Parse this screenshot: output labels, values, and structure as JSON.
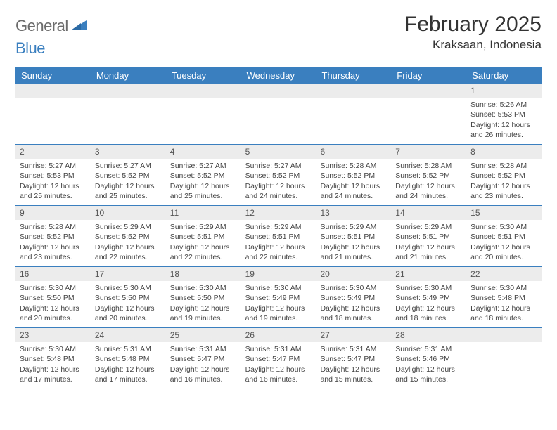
{
  "brand": {
    "text1": "General",
    "text2": "Blue",
    "icon_color": "#3a7fbf"
  },
  "header": {
    "month_title": "February 2025",
    "location": "Kraksaan, Indonesia"
  },
  "styling": {
    "header_bg": "#3a7fbf",
    "header_text": "#ffffff",
    "daynum_bg": "#ececec",
    "divider_color": "#3a7fbf",
    "body_text": "#444444"
  },
  "weekdays": [
    "Sunday",
    "Monday",
    "Tuesday",
    "Wednesday",
    "Thursday",
    "Friday",
    "Saturday"
  ],
  "weeks": [
    [
      {
        "n": "",
        "sunrise": "",
        "sunset": "",
        "daylight": ""
      },
      {
        "n": "",
        "sunrise": "",
        "sunset": "",
        "daylight": ""
      },
      {
        "n": "",
        "sunrise": "",
        "sunset": "",
        "daylight": ""
      },
      {
        "n": "",
        "sunrise": "",
        "sunset": "",
        "daylight": ""
      },
      {
        "n": "",
        "sunrise": "",
        "sunset": "",
        "daylight": ""
      },
      {
        "n": "",
        "sunrise": "",
        "sunset": "",
        "daylight": ""
      },
      {
        "n": "1",
        "sunrise": "Sunrise: 5:26 AM",
        "sunset": "Sunset: 5:53 PM",
        "daylight": "Daylight: 12 hours and 26 minutes."
      }
    ],
    [
      {
        "n": "2",
        "sunrise": "Sunrise: 5:27 AM",
        "sunset": "Sunset: 5:53 PM",
        "daylight": "Daylight: 12 hours and 25 minutes."
      },
      {
        "n": "3",
        "sunrise": "Sunrise: 5:27 AM",
        "sunset": "Sunset: 5:52 PM",
        "daylight": "Daylight: 12 hours and 25 minutes."
      },
      {
        "n": "4",
        "sunrise": "Sunrise: 5:27 AM",
        "sunset": "Sunset: 5:52 PM",
        "daylight": "Daylight: 12 hours and 25 minutes."
      },
      {
        "n": "5",
        "sunrise": "Sunrise: 5:27 AM",
        "sunset": "Sunset: 5:52 PM",
        "daylight": "Daylight: 12 hours and 24 minutes."
      },
      {
        "n": "6",
        "sunrise": "Sunrise: 5:28 AM",
        "sunset": "Sunset: 5:52 PM",
        "daylight": "Daylight: 12 hours and 24 minutes."
      },
      {
        "n": "7",
        "sunrise": "Sunrise: 5:28 AM",
        "sunset": "Sunset: 5:52 PM",
        "daylight": "Daylight: 12 hours and 24 minutes."
      },
      {
        "n": "8",
        "sunrise": "Sunrise: 5:28 AM",
        "sunset": "Sunset: 5:52 PM",
        "daylight": "Daylight: 12 hours and 23 minutes."
      }
    ],
    [
      {
        "n": "9",
        "sunrise": "Sunrise: 5:28 AM",
        "sunset": "Sunset: 5:52 PM",
        "daylight": "Daylight: 12 hours and 23 minutes."
      },
      {
        "n": "10",
        "sunrise": "Sunrise: 5:29 AM",
        "sunset": "Sunset: 5:52 PM",
        "daylight": "Daylight: 12 hours and 22 minutes."
      },
      {
        "n": "11",
        "sunrise": "Sunrise: 5:29 AM",
        "sunset": "Sunset: 5:51 PM",
        "daylight": "Daylight: 12 hours and 22 minutes."
      },
      {
        "n": "12",
        "sunrise": "Sunrise: 5:29 AM",
        "sunset": "Sunset: 5:51 PM",
        "daylight": "Daylight: 12 hours and 22 minutes."
      },
      {
        "n": "13",
        "sunrise": "Sunrise: 5:29 AM",
        "sunset": "Sunset: 5:51 PM",
        "daylight": "Daylight: 12 hours and 21 minutes."
      },
      {
        "n": "14",
        "sunrise": "Sunrise: 5:29 AM",
        "sunset": "Sunset: 5:51 PM",
        "daylight": "Daylight: 12 hours and 21 minutes."
      },
      {
        "n": "15",
        "sunrise": "Sunrise: 5:30 AM",
        "sunset": "Sunset: 5:51 PM",
        "daylight": "Daylight: 12 hours and 20 minutes."
      }
    ],
    [
      {
        "n": "16",
        "sunrise": "Sunrise: 5:30 AM",
        "sunset": "Sunset: 5:50 PM",
        "daylight": "Daylight: 12 hours and 20 minutes."
      },
      {
        "n": "17",
        "sunrise": "Sunrise: 5:30 AM",
        "sunset": "Sunset: 5:50 PM",
        "daylight": "Daylight: 12 hours and 20 minutes."
      },
      {
        "n": "18",
        "sunrise": "Sunrise: 5:30 AM",
        "sunset": "Sunset: 5:50 PM",
        "daylight": "Daylight: 12 hours and 19 minutes."
      },
      {
        "n": "19",
        "sunrise": "Sunrise: 5:30 AM",
        "sunset": "Sunset: 5:49 PM",
        "daylight": "Daylight: 12 hours and 19 minutes."
      },
      {
        "n": "20",
        "sunrise": "Sunrise: 5:30 AM",
        "sunset": "Sunset: 5:49 PM",
        "daylight": "Daylight: 12 hours and 18 minutes."
      },
      {
        "n": "21",
        "sunrise": "Sunrise: 5:30 AM",
        "sunset": "Sunset: 5:49 PM",
        "daylight": "Daylight: 12 hours and 18 minutes."
      },
      {
        "n": "22",
        "sunrise": "Sunrise: 5:30 AM",
        "sunset": "Sunset: 5:48 PM",
        "daylight": "Daylight: 12 hours and 18 minutes."
      }
    ],
    [
      {
        "n": "23",
        "sunrise": "Sunrise: 5:30 AM",
        "sunset": "Sunset: 5:48 PM",
        "daylight": "Daylight: 12 hours and 17 minutes."
      },
      {
        "n": "24",
        "sunrise": "Sunrise: 5:31 AM",
        "sunset": "Sunset: 5:48 PM",
        "daylight": "Daylight: 12 hours and 17 minutes."
      },
      {
        "n": "25",
        "sunrise": "Sunrise: 5:31 AM",
        "sunset": "Sunset: 5:47 PM",
        "daylight": "Daylight: 12 hours and 16 minutes."
      },
      {
        "n": "26",
        "sunrise": "Sunrise: 5:31 AM",
        "sunset": "Sunset: 5:47 PM",
        "daylight": "Daylight: 12 hours and 16 minutes."
      },
      {
        "n": "27",
        "sunrise": "Sunrise: 5:31 AM",
        "sunset": "Sunset: 5:47 PM",
        "daylight": "Daylight: 12 hours and 15 minutes."
      },
      {
        "n": "28",
        "sunrise": "Sunrise: 5:31 AM",
        "sunset": "Sunset: 5:46 PM",
        "daylight": "Daylight: 12 hours and 15 minutes."
      },
      {
        "n": "",
        "sunrise": "",
        "sunset": "",
        "daylight": ""
      }
    ]
  ]
}
